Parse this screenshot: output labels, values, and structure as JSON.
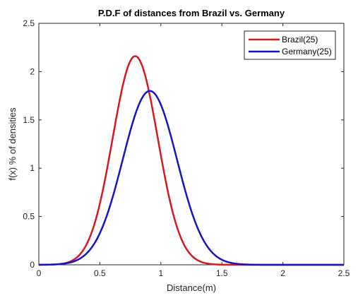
{
  "chart_data": {
    "type": "line",
    "title": "P.D.F of distances from Brazil vs. Germany",
    "xlabel": "Distance(m)",
    "ylabel": "f(x) % of densities",
    "xlim": [
      0,
      2.5
    ],
    "ylim": [
      0,
      2.5
    ],
    "xticks": [
      0,
      0.5,
      1,
      1.5,
      2,
      2.5
    ],
    "xtick_labels": [
      "0",
      "0.5",
      "1",
      "1.5",
      "2",
      "2.5"
    ],
    "yticks": [
      0,
      0.5,
      1,
      1.5,
      2,
      2.5
    ],
    "ytick_labels": [
      "0",
      "0.5",
      "1",
      "1.5",
      "2",
      "2.5"
    ],
    "grid": false,
    "legend_position": "top-right",
    "series": [
      {
        "name": "Brazil(25)",
        "color": "#d7191c",
        "mean": 0.79,
        "std": 0.185,
        "peak": 2.16
      },
      {
        "name": "Germany(25)",
        "color": "#1515c8",
        "mean": 0.91,
        "std": 0.222,
        "peak": 1.8
      }
    ]
  }
}
